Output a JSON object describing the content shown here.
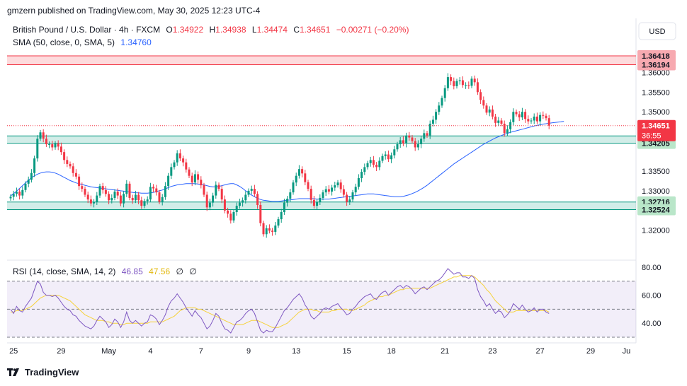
{
  "header": {
    "publisher": "gmzern published on TradingView.com, May 30, 2025 12:23 UTC-4"
  },
  "footer": {
    "brand": "TradingView",
    "logo_icon": "tradingview-logo-icon"
  },
  "colors": {
    "up": "#089981",
    "down": "#f23645",
    "sma": "#2962ff",
    "rsi": "#7e57c2",
    "rsi_ma": "#f6d23b",
    "zone_green": "#089981",
    "zone_red": "#f23645"
  },
  "chart_data": {
    "type": "candlestick",
    "symbol_line": {
      "title": "British Pound / U.S. Dollar · 4h · FXCM",
      "O_label": "O",
      "O": "1.34922",
      "H_label": "H",
      "H": "1.34938",
      "L_label": "L",
      "L": "1.34474",
      "C_label": "C",
      "C": "1.34651",
      "change": "−0.00271 (−0.20%)"
    },
    "sma_legend": {
      "label": "SMA (50, close, 0, SMA, 5)",
      "value": "1.34760"
    },
    "currency": "USD",
    "ylim": [
      1.3135,
      1.3658
    ],
    "y_ticks": [
      {
        "value": 1.36,
        "label": "1.36000"
      },
      {
        "value": 1.355,
        "label": "1.35500"
      },
      {
        "value": 1.35,
        "label": "1.35000"
      },
      {
        "value": 1.335,
        "label": "1.33500"
      },
      {
        "value": 1.33,
        "label": "1.33000"
      },
      {
        "value": 1.32,
        "label": "1.32000"
      }
    ],
    "price_labels": [
      {
        "value": 1.36418,
        "label": "1.36418",
        "kind": "red"
      },
      {
        "value": 1.36194,
        "label": "1.36194",
        "kind": "red"
      },
      {
        "value": 1.3439,
        "label": "1.34390",
        "kind": "green"
      },
      {
        "value": 1.34205,
        "label": "1.34205",
        "kind": "green"
      },
      {
        "value": 1.32716,
        "label": "1.32716",
        "kind": "green"
      },
      {
        "value": 1.32524,
        "label": "1.32524",
        "kind": "green"
      }
    ],
    "last_price": {
      "value": 1.34651,
      "label": "1.34651",
      "countdown": "36:55"
    },
    "zones": [
      {
        "from": 1.36194,
        "to": 1.36418,
        "kind": "red"
      },
      {
        "from": 1.34205,
        "to": 1.3439,
        "kind": "green"
      },
      {
        "from": 1.32524,
        "to": 1.32716,
        "kind": "green"
      }
    ],
    "x_ticks": [
      {
        "index": 1,
        "label": "25"
      },
      {
        "index": 17,
        "label": "29"
      },
      {
        "index": 33,
        "label": "May"
      },
      {
        "index": 47,
        "label": "4"
      },
      {
        "index": 64,
        "label": "7"
      },
      {
        "index": 80,
        "label": "9"
      },
      {
        "index": 96,
        "label": "13"
      },
      {
        "index": 113,
        "label": "15"
      },
      {
        "index": 128,
        "label": "18"
      },
      {
        "index": 146,
        "label": "21"
      },
      {
        "index": 162,
        "label": "23"
      },
      {
        "index": 178,
        "label": "27"
      },
      {
        "index": 195,
        "label": "29"
      },
      {
        "index": 207,
        "label": "Ju"
      }
    ],
    "closes": [
      1.3285,
      1.3292,
      1.3298,
      1.3288,
      1.3302,
      1.3318,
      1.3328,
      1.3345,
      1.3382,
      1.3432,
      1.3448,
      1.3432,
      1.3418,
      1.3418,
      1.341,
      1.342,
      1.3412,
      1.3398,
      1.3378,
      1.3368,
      1.3362,
      1.3345,
      1.3336,
      1.3312,
      1.3305,
      1.329,
      1.3278,
      1.3268,
      1.3272,
      1.3288,
      1.3312,
      1.3302,
      1.3292,
      1.3276,
      1.3282,
      1.3298,
      1.3288,
      1.3268,
      1.3292,
      1.3318,
      1.3282,
      1.3276,
      1.329,
      1.3276,
      1.3262,
      1.3274,
      1.3278,
      1.331,
      1.3306,
      1.3296,
      1.3272,
      1.3284,
      1.3312,
      1.3338,
      1.336,
      1.3372,
      1.3395,
      1.3382,
      1.3372,
      1.3354,
      1.3338,
      1.3321,
      1.3342,
      1.3328,
      1.3314,
      1.329,
      1.3258,
      1.327,
      1.3288,
      1.3315,
      1.3305,
      1.3278,
      1.325,
      1.3242,
      1.3225,
      1.3246,
      1.3262,
      1.327,
      1.3276,
      1.329,
      1.33,
      1.3305,
      1.3292,
      1.3264,
      1.3218,
      1.319,
      1.3205,
      1.3199,
      1.3196,
      1.3212,
      1.3228,
      1.3246,
      1.327,
      1.328,
      1.3296,
      1.3321,
      1.3338,
      1.3355,
      1.3344,
      1.3322,
      1.3305,
      1.3277,
      1.3262,
      1.3272,
      1.3282,
      1.3296,
      1.3304,
      1.3298,
      1.3308,
      1.3314,
      1.3321,
      1.3304,
      1.329,
      1.3272,
      1.3278,
      1.3296,
      1.331,
      1.3332,
      1.3348,
      1.336,
      1.337,
      1.3378,
      1.3366,
      1.336,
      1.3376,
      1.3388,
      1.3392,
      1.338,
      1.339,
      1.3405,
      1.3418,
      1.3428,
      1.342,
      1.344,
      1.3435,
      1.3426,
      1.341,
      1.3418,
      1.3432,
      1.3446,
      1.344,
      1.347,
      1.348,
      1.35,
      1.3516,
      1.3535,
      1.356,
      1.3588,
      1.3578,
      1.3565,
      1.3578,
      1.358,
      1.3568,
      1.3568,
      1.3566,
      1.3584,
      1.3575,
      1.355,
      1.353,
      1.3516,
      1.3498,
      1.3506,
      1.3488,
      1.3472,
      1.3478,
      1.347,
      1.3446,
      1.3456,
      1.3474,
      1.35,
      1.3494,
      1.3486,
      1.35,
      1.3482,
      1.3476,
      1.3478,
      1.3488,
      1.3476,
      1.3492,
      1.349,
      1.3484,
      1.3465
    ],
    "sma_series": [
      1.3287,
      1.3293,
      1.3299,
      1.3306,
      1.3313,
      1.332,
      1.3327,
      1.3333,
      1.3338,
      1.3342,
      1.3345,
      1.3347,
      1.3348,
      1.3348,
      1.3347,
      1.3345,
      1.3342,
      1.3338,
      1.3334,
      1.333,
      1.3326,
      1.3323,
      1.332,
      1.3318,
      1.3316,
      1.3314,
      1.3312,
      1.331,
      1.3309,
      1.3308,
      1.3307,
      1.3306,
      1.3305,
      1.3304,
      1.3303,
      1.3302,
      1.3301,
      1.33,
      1.3299,
      1.3298,
      1.3297,
      1.3296,
      1.3295,
      1.3295,
      1.3294,
      1.3294,
      1.3294,
      1.3295,
      1.3296,
      1.3298,
      1.33,
      1.3302,
      1.3305,
      1.3308,
      1.3311,
      1.3313,
      1.3315,
      1.3316,
      1.3317,
      1.3318,
      1.3318,
      1.3318,
      1.3318,
      1.3317,
      1.3316,
      1.3315,
      1.3313,
      1.3311,
      1.331,
      1.331,
      1.3311,
      1.3313,
      1.3315,
      1.3317,
      1.3318,
      1.3318,
      1.3315,
      1.3311,
      1.3306,
      1.33,
      1.3295,
      1.3289,
      1.3285,
      1.3281,
      1.3278,
      1.3276,
      1.3275,
      1.3274,
      1.3273,
      1.3273,
      1.3273,
      1.3274,
      1.3275,
      1.3276,
      1.3277,
      1.3278,
      1.3279,
      1.328,
      1.328,
      1.328,
      1.328,
      1.328,
      1.328,
      1.3279,
      1.3279,
      1.3279,
      1.3279,
      1.3279,
      1.328,
      1.3281,
      1.3282,
      1.3283,
      1.3284,
      1.3285,
      1.3286,
      1.3287,
      1.3288,
      1.3289,
      1.329,
      1.3291,
      1.3292,
      1.3292,
      1.3292,
      1.3291,
      1.329,
      1.3289,
      1.3288,
      1.3287,
      1.3286,
      1.3285,
      1.3285,
      1.3285,
      1.3286,
      1.3288,
      1.329,
      1.3293,
      1.3296,
      1.33,
      1.3304,
      1.3309,
      1.3314,
      1.332,
      1.3326,
      1.3332,
      1.3338,
      1.3344,
      1.335,
      1.3356,
      1.3362,
      1.3368,
      1.3373,
      1.3378,
      1.3383,
      1.3388,
      1.3393,
      1.3398,
      1.3403,
      1.3408,
      1.3413,
      1.3418,
      1.3422,
      1.3426,
      1.343,
      1.3434,
      1.3437,
      1.344,
      1.3443,
      1.3445,
      1.3448,
      1.345,
      1.3452,
      1.3454,
      1.3456,
      1.3458,
      1.346,
      1.3462,
      1.3464,
      1.3466,
      1.3467,
      1.3469,
      1.347,
      1.3471,
      1.3472,
      1.3473,
      1.3474,
      1.3475,
      1.3476
    ],
    "rsi": {
      "legend": {
        "label": "RSI (14, close, SMA, 14, 2)",
        "rsi_value": "46.85",
        "ma_value": "47.56",
        "extra1": "∅",
        "extra2": "∅"
      },
      "ylim": [
        27,
        83
      ],
      "y_ticks": [
        {
          "value": 80,
          "label": "80.00"
        },
        {
          "value": 60,
          "label": "60.00"
        },
        {
          "value": 40,
          "label": "40.00"
        }
      ],
      "bands": [
        70,
        50,
        30
      ],
      "values": [
        50,
        47,
        52,
        49,
        48,
        52,
        55,
        58,
        64,
        70,
        68,
        62,
        60,
        60,
        59,
        60,
        58,
        55,
        52,
        50,
        49,
        46,
        45,
        42,
        40,
        38,
        37,
        36,
        38,
        42,
        45,
        43,
        41,
        37,
        39,
        43,
        41,
        37,
        41,
        48,
        42,
        40,
        42,
        40,
        38,
        40,
        41,
        46,
        45,
        43,
        39,
        42,
        46,
        52,
        56,
        58,
        61,
        58,
        55,
        51,
        48,
        45,
        49,
        46,
        44,
        40,
        36,
        38,
        42,
        47,
        45,
        40,
        36,
        35,
        33,
        37,
        41,
        42,
        44,
        47,
        49,
        50,
        47,
        41,
        35,
        33,
        35,
        34,
        34,
        37,
        41,
        45,
        49,
        51,
        54,
        57,
        59,
        61,
        58,
        53,
        50,
        45,
        43,
        45,
        47,
        50,
        51,
        50,
        52,
        53,
        54,
        51,
        49,
        46,
        47,
        50,
        52,
        55,
        57,
        59,
        60,
        61,
        58,
        57,
        60,
        62,
        63,
        60,
        62,
        64,
        66,
        67,
        65,
        67,
        66,
        64,
        61,
        63,
        65,
        66,
        64,
        66,
        68,
        70,
        71,
        73,
        76,
        79,
        77,
        75,
        76,
        76,
        73,
        73,
        72,
        74,
        72,
        64,
        59,
        56,
        52,
        54,
        50,
        47,
        49,
        48,
        44,
        46,
        49,
        54,
        52,
        50,
        53,
        50,
        48,
        49,
        51,
        48,
        50,
        50,
        48,
        47
      ],
      "ma_values": [
        48,
        48,
        49,
        49,
        49,
        50,
        51,
        52,
        54,
        56,
        58,
        59,
        60,
        60,
        60,
        60,
        60,
        59,
        58,
        57,
        56,
        54,
        52,
        50,
        48,
        46,
        45,
        44,
        43,
        42,
        42,
        42,
        41,
        41,
        40,
        40,
        40,
        39,
        39,
        40,
        40,
        40,
        40,
        40,
        40,
        40,
        40,
        41,
        41,
        41,
        41,
        41,
        42,
        43,
        44,
        45,
        47,
        49,
        50,
        51,
        51,
        51,
        51,
        50,
        50,
        49,
        48,
        47,
        46,
        45,
        44,
        43,
        42,
        41,
        40,
        39,
        39,
        39,
        39,
        40,
        41,
        42,
        42,
        42,
        41,
        40,
        39,
        38,
        37,
        37,
        37,
        38,
        39,
        40,
        42,
        44,
        46,
        48,
        49,
        50,
        50,
        50,
        49,
        49,
        48,
        48,
        48,
        48,
        49,
        49,
        50,
        50,
        50,
        50,
        49,
        49,
        50,
        51,
        52,
        53,
        55,
        56,
        57,
        58,
        59,
        59,
        60,
        60,
        61,
        62,
        63,
        64,
        64,
        65,
        65,
        65,
        65,
        65,
        65,
        65,
        65,
        65,
        66,
        67,
        68,
        69,
        70,
        71,
        72,
        73,
        73,
        74,
        74,
        74,
        74,
        74,
        73,
        71,
        69,
        67,
        64,
        62,
        59,
        56,
        54,
        52,
        50,
        48,
        48,
        48,
        49,
        49,
        49,
        49,
        49,
        49,
        49,
        49,
        49,
        49,
        49,
        48
      ]
    }
  }
}
